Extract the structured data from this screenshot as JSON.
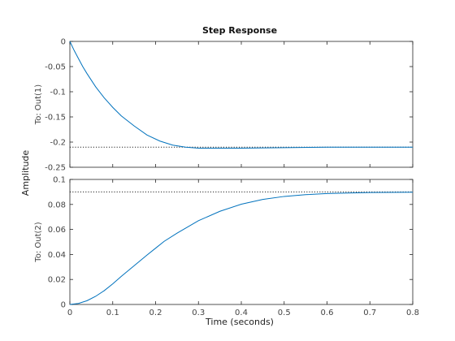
{
  "figure": {
    "title": "Step Response",
    "xlabel": "Time (seconds)",
    "ylabel": "Amplitude"
  },
  "chart_data": [
    {
      "type": "line",
      "channel_label": "To: Out(1)",
      "xlim": [
        0,
        0.8
      ],
      "ylim": [
        -0.25,
        0
      ],
      "xticks": [
        0,
        0.1,
        0.2,
        0.3,
        0.4,
        0.5,
        0.6,
        0.7,
        0.8
      ],
      "yticks": [
        0,
        -0.05,
        -0.1,
        -0.15,
        -0.2,
        -0.25
      ],
      "ytick_labels": [
        "0",
        "-0.05",
        "-0.1",
        "-0.15",
        "-0.2",
        "-0.25"
      ],
      "show_xtick_labels": false,
      "steady_state": -0.21,
      "series": [
        {
          "color": "#0072bd",
          "x": [
            0,
            0.01,
            0.02,
            0.03,
            0.04,
            0.06,
            0.08,
            0.1,
            0.12,
            0.15,
            0.18,
            0.21,
            0.24,
            0.27,
            0.3,
            0.35,
            0.4,
            0.5,
            0.6,
            0.7,
            0.8
          ],
          "y": [
            0,
            -0.018,
            -0.034,
            -0.05,
            -0.064,
            -0.09,
            -0.112,
            -0.131,
            -0.148,
            -0.168,
            -0.186,
            -0.198,
            -0.206,
            -0.21,
            -0.212,
            -0.212,
            -0.212,
            -0.211,
            -0.21,
            -0.21,
            -0.21
          ]
        }
      ]
    },
    {
      "type": "line",
      "channel_label": "To: Out(2)",
      "xlim": [
        0,
        0.8
      ],
      "ylim": [
        0,
        0.1
      ],
      "xticks": [
        0,
        0.1,
        0.2,
        0.3,
        0.4,
        0.5,
        0.6,
        0.7,
        0.8
      ],
      "xtick_labels": [
        "0",
        "0.1",
        "0.2",
        "0.3",
        "0.4",
        "0.5",
        "0.6",
        "0.7",
        "0.8"
      ],
      "yticks": [
        0,
        0.02,
        0.04,
        0.06,
        0.08,
        0.1
      ],
      "ytick_labels": [
        "0",
        "0.02",
        "0.04",
        "0.06",
        "0.08",
        "0.1"
      ],
      "show_xtick_labels": true,
      "steady_state": 0.09,
      "series": [
        {
          "color": "#0072bd",
          "x": [
            0,
            0.02,
            0.04,
            0.06,
            0.08,
            0.1,
            0.12,
            0.15,
            0.18,
            0.2,
            0.22,
            0.25,
            0.3,
            0.35,
            0.4,
            0.45,
            0.5,
            0.55,
            0.6,
            0.7,
            0.8
          ],
          "y": [
            0,
            0.0008,
            0.003,
            0.0065,
            0.011,
            0.0165,
            0.0225,
            0.031,
            0.0395,
            0.045,
            0.0505,
            0.057,
            0.067,
            0.0745,
            0.0802,
            0.084,
            0.0864,
            0.0878,
            0.0887,
            0.0895,
            0.0898
          ]
        }
      ]
    }
  ]
}
